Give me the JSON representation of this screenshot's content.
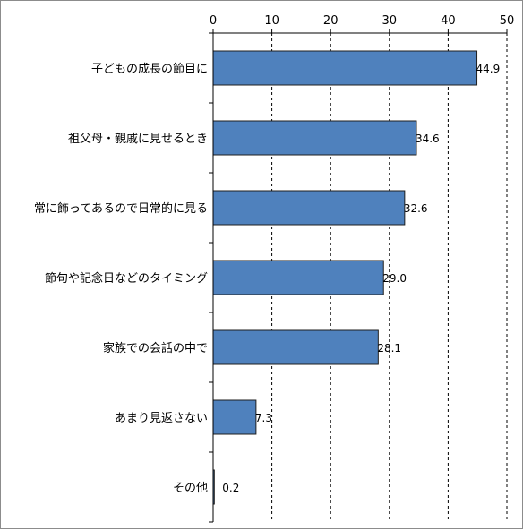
{
  "chart_data": {
    "type": "bar",
    "orientation": "horizontal",
    "categories": [
      "子どもの成長の節目に",
      "祖父母・親戚に見せるとき",
      "常に飾ってあるので日常的に見る",
      "節句や記念日などのタイミング",
      "家族での会話の中で",
      "あまり見返さない",
      "その他"
    ],
    "values": [
      44.9,
      34.6,
      32.6,
      29.0,
      28.1,
      7.3,
      0.2
    ],
    "value_labels": [
      "44.9",
      "34.6",
      "32.6",
      "29.0",
      "28.1",
      "7.3",
      "0.2"
    ],
    "xlim": [
      0,
      50
    ],
    "ticks": [
      0,
      10,
      20,
      30,
      40,
      50
    ],
    "tick_labels": [
      "0",
      "10",
      "20",
      "30",
      "40",
      "50"
    ],
    "axis_position": "top",
    "grid": true,
    "grid_style": "dashed",
    "bar_color": "#4f81bd",
    "bar_edge_color": "#1f1f1f",
    "title": "",
    "xlabel": "",
    "ylabel": ""
  }
}
